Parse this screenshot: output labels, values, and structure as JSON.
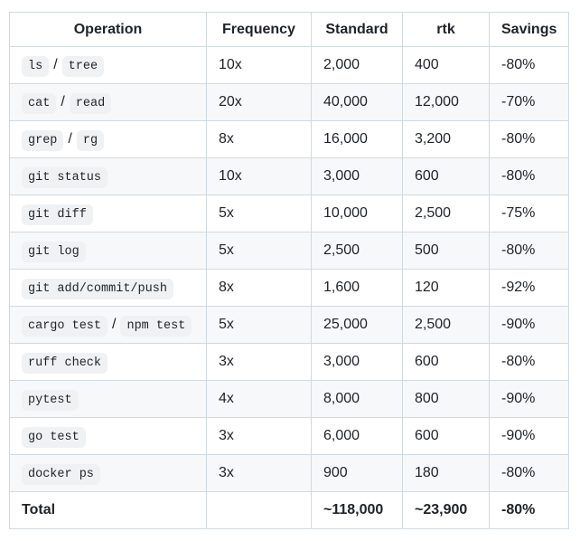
{
  "colors": {
    "text": "#1f2328",
    "border": "#d1d9e0",
    "stripe_background": "#f6f8fa",
    "code_background": "#eff1f3",
    "page_background": "#ffffff"
  },
  "table": {
    "columns": [
      "Operation",
      "Frequency",
      "Standard",
      "rtk",
      "Savings"
    ],
    "rows": [
      {
        "operation": [
          {
            "code": "ls"
          },
          {
            "text": "/"
          },
          {
            "code": "tree"
          }
        ],
        "frequency": "10x",
        "standard": "2,000",
        "rtk": "400",
        "savings": "-80%"
      },
      {
        "operation": [
          {
            "code": "cat"
          },
          {
            "text": "/"
          },
          {
            "code": "read"
          }
        ],
        "frequency": "20x",
        "standard": "40,000",
        "rtk": "12,000",
        "savings": "-70%"
      },
      {
        "operation": [
          {
            "code": "grep"
          },
          {
            "text": "/"
          },
          {
            "code": "rg"
          }
        ],
        "frequency": "8x",
        "standard": "16,000",
        "rtk": "3,200",
        "savings": "-80%"
      },
      {
        "operation": [
          {
            "code": "git status"
          }
        ],
        "frequency": "10x",
        "standard": "3,000",
        "rtk": "600",
        "savings": "-80%"
      },
      {
        "operation": [
          {
            "code": "git diff"
          }
        ],
        "frequency": "5x",
        "standard": "10,000",
        "rtk": "2,500",
        "savings": "-75%"
      },
      {
        "operation": [
          {
            "code": "git log"
          }
        ],
        "frequency": "5x",
        "standard": "2,500",
        "rtk": "500",
        "savings": "-80%"
      },
      {
        "operation": [
          {
            "code": "git add/commit/push"
          }
        ],
        "frequency": "8x",
        "standard": "1,600",
        "rtk": "120",
        "savings": "-92%"
      },
      {
        "operation": [
          {
            "code": "cargo test"
          },
          {
            "text": "/"
          },
          {
            "code": "npm test"
          }
        ],
        "frequency": "5x",
        "standard": "25,000",
        "rtk": "2,500",
        "savings": "-90%"
      },
      {
        "operation": [
          {
            "code": "ruff check"
          }
        ],
        "frequency": "3x",
        "standard": "3,000",
        "rtk": "600",
        "savings": "-80%"
      },
      {
        "operation": [
          {
            "code": "pytest"
          }
        ],
        "frequency": "4x",
        "standard": "8,000",
        "rtk": "800",
        "savings": "-90%"
      },
      {
        "operation": [
          {
            "code": "go test"
          }
        ],
        "frequency": "3x",
        "standard": "6,000",
        "rtk": "600",
        "savings": "-90%"
      },
      {
        "operation": [
          {
            "code": "docker ps"
          }
        ],
        "frequency": "3x",
        "standard": "900",
        "rtk": "180",
        "savings": "-80%"
      }
    ],
    "total_row": {
      "operation": "Total",
      "frequency": "",
      "standard": "~118,000",
      "rtk": "~23,900",
      "savings": "-80%"
    }
  }
}
